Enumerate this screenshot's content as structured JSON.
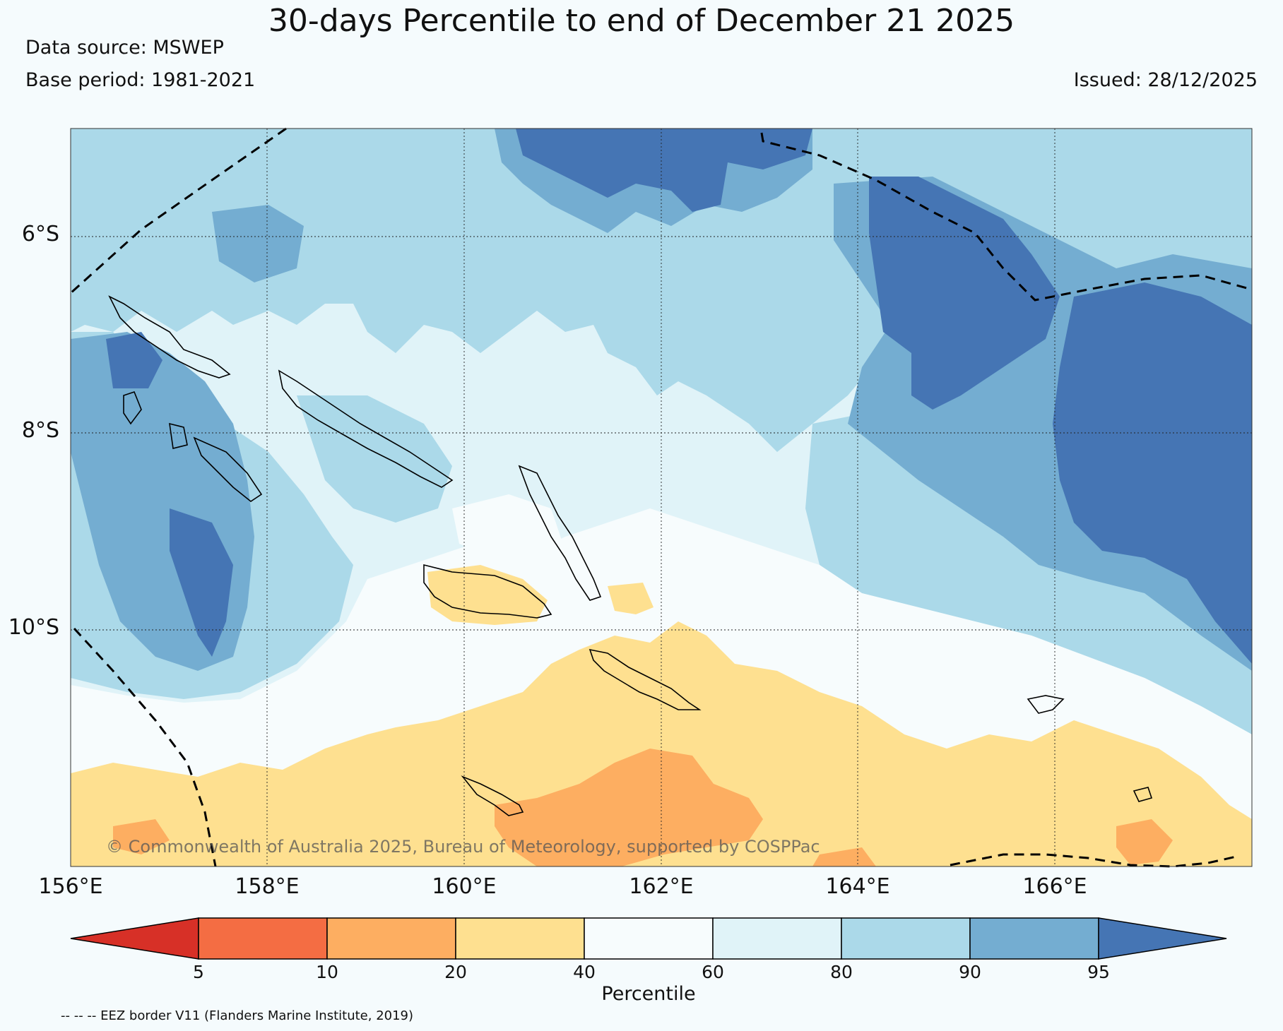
{
  "header": {
    "title": "30-days Percentile to end of December 21 2025",
    "data_source": "Data source: MSWEP",
    "base_period": "Base period: 1981-2021",
    "issued": "Issued: 28/12/2025"
  },
  "map": {
    "lat_labels": [
      "6°S",
      "8°S",
      "10°S"
    ],
    "lon_labels": [
      "156°E",
      "158°E",
      "160°E",
      "162°E",
      "164°E",
      "166°E"
    ],
    "copyright": "© Commonwealth of Australia 2025, Bureau of Meteorology, supported by COSPPac",
    "extent": {
      "lon_min": 156,
      "lon_max": 168,
      "lat_min": -12.5,
      "lat_max": -4.9
    }
  },
  "legend": {
    "title": "Percentile",
    "ticks": [
      "5",
      "10",
      "20",
      "40",
      "60",
      "80",
      "90",
      "95"
    ],
    "colors": [
      "#d73027",
      "#f46d43",
      "#fdae61",
      "#fee090",
      "#f7fcfd",
      "#e0f3f8",
      "#abd9e9",
      "#74add1",
      "#4575b4"
    ],
    "eez_note": "-- -- -- EEZ border V11 (Flanders Marine Institute, 2019)"
  }
}
